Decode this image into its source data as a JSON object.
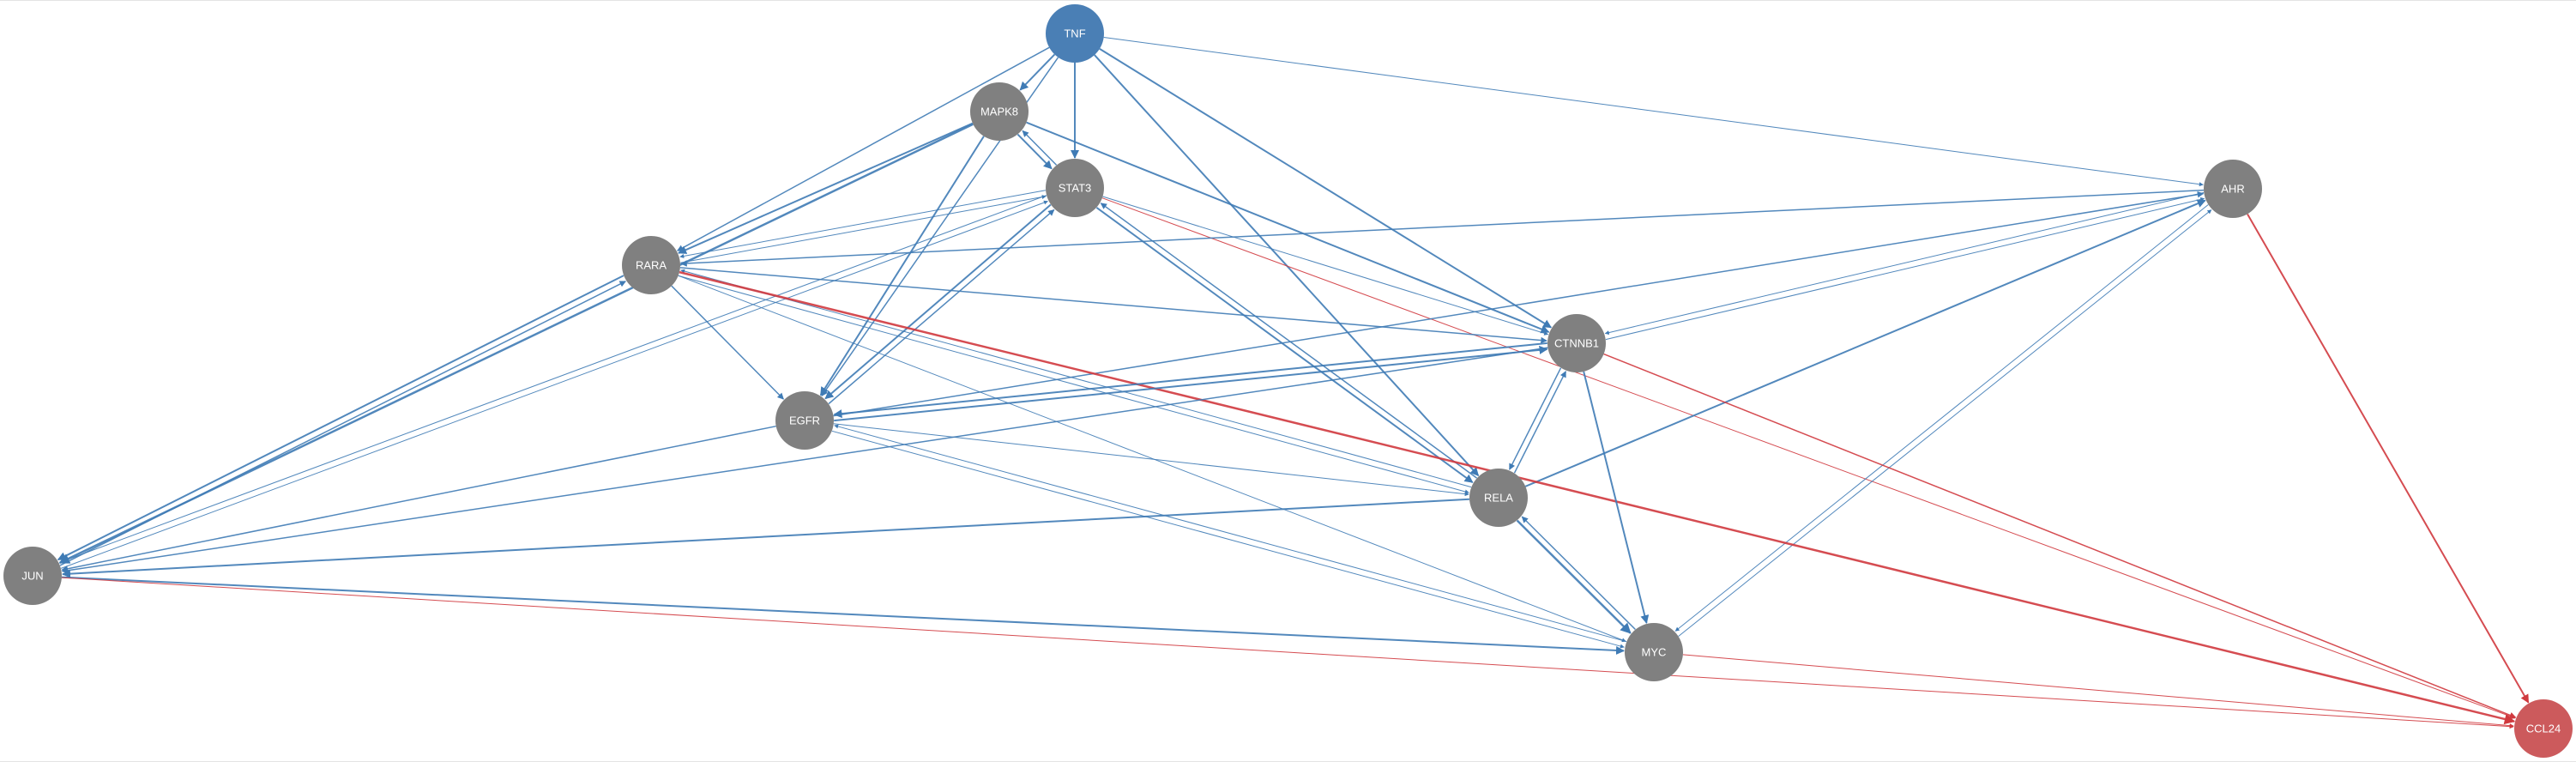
{
  "network": {
    "colors": {
      "regulator_node": "#4a7fb5",
      "target_node": "#cc5a5c",
      "default_node": "#808080",
      "edge_blue": "#3f7bb5",
      "edge_red": "#d0393e",
      "node_text": "#ffffff"
    },
    "nodes": [
      {
        "id": "TNF",
        "label": "TNF",
        "role": "regulator"
      },
      {
        "id": "MAPK8",
        "label": "MAPK8",
        "role": "default"
      },
      {
        "id": "STAT3",
        "label": "STAT3",
        "role": "default"
      },
      {
        "id": "AHR",
        "label": "AHR",
        "role": "default"
      },
      {
        "id": "RARA",
        "label": "RARA",
        "role": "default"
      },
      {
        "id": "CTNNB1",
        "label": "CTNNB1",
        "role": "default"
      },
      {
        "id": "EGFR",
        "label": "EGFR",
        "role": "default"
      },
      {
        "id": "RELA",
        "label": "RELA",
        "role": "default"
      },
      {
        "id": "JUN",
        "label": "JUN",
        "role": "default"
      },
      {
        "id": "MYC",
        "label": "MYC",
        "role": "default"
      },
      {
        "id": "CCL24",
        "label": "CCL24",
        "role": "target"
      }
    ],
    "edges": [
      {
        "source": "TNF",
        "target": "MAPK8",
        "color": "blue",
        "weight": 2
      },
      {
        "source": "TNF",
        "target": "STAT3",
        "color": "blue",
        "weight": 2
      },
      {
        "source": "TNF",
        "target": "RARA",
        "color": "blue",
        "weight": 1.5
      },
      {
        "source": "TNF",
        "target": "AHR",
        "color": "blue",
        "weight": 1
      },
      {
        "source": "TNF",
        "target": "CTNNB1",
        "color": "blue",
        "weight": 2
      },
      {
        "source": "TNF",
        "target": "RELA",
        "color": "blue",
        "weight": 2
      },
      {
        "source": "TNF",
        "target": "EGFR",
        "color": "blue",
        "weight": 1.5
      },
      {
        "source": "MAPK8",
        "target": "STAT3",
        "color": "blue",
        "weight": 2
      },
      {
        "source": "STAT3",
        "target": "MAPK8",
        "color": "blue",
        "weight": 1.5
      },
      {
        "source": "MAPK8",
        "target": "RARA",
        "color": "blue",
        "weight": 2
      },
      {
        "source": "MAPK8",
        "target": "CTNNB1",
        "color": "blue",
        "weight": 2
      },
      {
        "source": "MAPK8",
        "target": "EGFR",
        "color": "blue",
        "weight": 2
      },
      {
        "source": "MAPK8",
        "target": "JUN",
        "color": "blue",
        "weight": 2.5
      },
      {
        "source": "RARA",
        "target": "STAT3",
        "color": "blue",
        "weight": 1
      },
      {
        "source": "STAT3",
        "target": "RARA",
        "color": "blue",
        "weight": 1
      },
      {
        "source": "STAT3",
        "target": "EGFR",
        "color": "blue",
        "weight": 2
      },
      {
        "source": "EGFR",
        "target": "STAT3",
        "color": "blue",
        "weight": 1.5
      },
      {
        "source": "STAT3",
        "target": "CTNNB1",
        "color": "blue",
        "weight": 1
      },
      {
        "source": "STAT3",
        "target": "RELA",
        "color": "blue",
        "weight": 2
      },
      {
        "source": "RELA",
        "target": "STAT3",
        "color": "blue",
        "weight": 1.5
      },
      {
        "source": "STAT3",
        "target": "JUN",
        "color": "blue",
        "weight": 1
      },
      {
        "source": "JUN",
        "target": "STAT3",
        "color": "blue",
        "weight": 1
      },
      {
        "source": "STAT3",
        "target": "CCL24",
        "color": "red",
        "weight": 1
      },
      {
        "source": "AHR",
        "target": "RARA",
        "color": "blue",
        "weight": 1.5
      },
      {
        "source": "CTNNB1",
        "target": "AHR",
        "color": "blue",
        "weight": 1
      },
      {
        "source": "AHR",
        "target": "CTNNB1",
        "color": "blue",
        "weight": 1
      },
      {
        "source": "EGFR",
        "target": "AHR",
        "color": "blue",
        "weight": 1.5
      },
      {
        "source": "RELA",
        "target": "AHR",
        "color": "blue",
        "weight": 2
      },
      {
        "source": "AHR",
        "target": "MYC",
        "color": "blue",
        "weight": 1
      },
      {
        "source": "MYC",
        "target": "AHR",
        "color": "blue",
        "weight": 1
      },
      {
        "source": "AHR",
        "target": "CCL24",
        "color": "red",
        "weight": 2
      },
      {
        "source": "RARA",
        "target": "CTNNB1",
        "color": "blue",
        "weight": 1.5
      },
      {
        "source": "RARA",
        "target": "EGFR",
        "color": "blue",
        "weight": 1.5
      },
      {
        "source": "RARA",
        "target": "RELA",
        "color": "blue",
        "weight": 1
      },
      {
        "source": "RELA",
        "target": "RARA",
        "color": "blue",
        "weight": 1
      },
      {
        "source": "RARA",
        "target": "MYC",
        "color": "blue",
        "weight": 1
      },
      {
        "source": "RARA",
        "target": "JUN",
        "color": "blue",
        "weight": 2
      },
      {
        "source": "JUN",
        "target": "RARA",
        "color": "blue",
        "weight": 1.5
      },
      {
        "source": "RARA",
        "target": "CCL24",
        "color": "red",
        "weight": 2.5
      },
      {
        "source": "CTNNB1",
        "target": "EGFR",
        "color": "blue",
        "weight": 2
      },
      {
        "source": "EGFR",
        "target": "CTNNB1",
        "color": "blue",
        "weight": 2
      },
      {
        "source": "CTNNB1",
        "target": "RELA",
        "color": "blue",
        "weight": 1.5
      },
      {
        "source": "RELA",
        "target": "CTNNB1",
        "color": "blue",
        "weight": 1.5
      },
      {
        "source": "CTNNB1",
        "target": "MYC",
        "color": "blue",
        "weight": 2
      },
      {
        "source": "CTNNB1",
        "target": "JUN",
        "color": "blue",
        "weight": 1.5
      },
      {
        "source": "CTNNB1",
        "target": "CCL24",
        "color": "red",
        "weight": 1.5
      },
      {
        "source": "EGFR",
        "target": "RELA",
        "color": "blue",
        "weight": 1
      },
      {
        "source": "EGFR",
        "target": "MYC",
        "color": "blue",
        "weight": 1
      },
      {
        "source": "MYC",
        "target": "EGFR",
        "color": "blue",
        "weight": 1
      },
      {
        "source": "EGFR",
        "target": "JUN",
        "color": "blue",
        "weight": 1.5
      },
      {
        "source": "RELA",
        "target": "JUN",
        "color": "blue",
        "weight": 2
      },
      {
        "source": "RELA",
        "target": "MYC",
        "color": "blue",
        "weight": 2.5
      },
      {
        "source": "MYC",
        "target": "RELA",
        "color": "blue",
        "weight": 1.5
      },
      {
        "source": "JUN",
        "target": "MYC",
        "color": "blue",
        "weight": 2
      },
      {
        "source": "JUN",
        "target": "CCL24",
        "color": "red",
        "weight": 1
      },
      {
        "source": "MYC",
        "target": "CCL24",
        "color": "red",
        "weight": 1
      }
    ]
  }
}
